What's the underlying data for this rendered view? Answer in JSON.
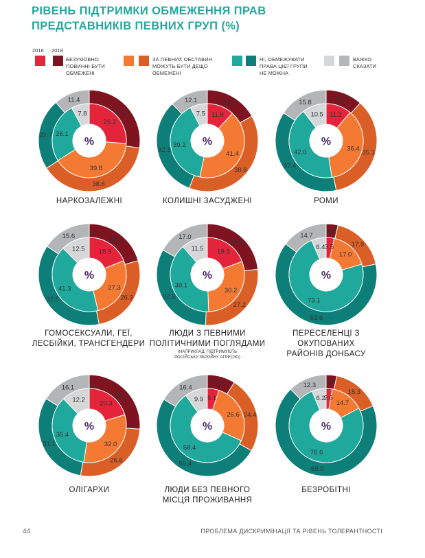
{
  "title": "РІВЕНЬ ПІДТРИМКИ ОБМЕЖЕННЯ ПРАВ ПРЕДСТАВНИКІВ ПЕВНИХ ГРУП (%)",
  "years": [
    "2016",
    "2018"
  ],
  "legend": [
    {
      "label": "БЕЗУМОВНО ПОВИННІ БУТИ ОБМЕЖЕНІ",
      "c2016": "#e3243b",
      "c2018": "#7d1420"
    },
    {
      "label": "ЗА ПЕВНИХ ОБСТАВИН МОЖУТЬ БУТИ ДЕЩО ОБМЕЖЕНІ",
      "c2016": "#f47a33",
      "c2018": "#d95f26"
    },
    {
      "label": "НІ, ОБМЕЖУВАТИ ПРАВА ЦІЄЇ ГРУПИ НЕ МОЖНА",
      "c2016": "#1fa89c",
      "c2018": "#0d7f78"
    },
    {
      "label": "ВАЖКО СКАЗАТИ",
      "c2016": "#d6d7d8",
      "c2018": "#b4b5b7"
    }
  ],
  "center_label": "%",
  "chart_data": [
    {
      "type": "pie",
      "name": "НАРКОЗАЛЕЖНІ",
      "note": "",
      "inner_2016": [
        26.2,
        39.8,
        26.1,
        7.8
      ],
      "outer_2018": [
        27.3,
        38.6,
        22.7,
        11.4
      ]
    },
    {
      "type": "pie",
      "name": "КОЛИШНІ ЗАСУДЖЕНІ",
      "note": "",
      "inner_2016": [
        11.8,
        41.4,
        39.2,
        7.5
      ],
      "outer_2018": [
        17.0,
        38.8,
        32.1,
        12.1
      ]
    },
    {
      "type": "pie",
      "name": "РОМИ",
      "note": "",
      "inner_2016": [
        11.2,
        36.4,
        42.0,
        10.5
      ],
      "outer_2018": [
        11.7,
        35.1,
        37.4,
        15.8
      ]
    },
    {
      "type": "pie",
      "name": "ГОМОСЕКСУАЛИ, ГЕЇ, ЛЕСБІЙКИ, ТРАНСГЕНДЕРИ",
      "note": "",
      "inner_2016": [
        18.9,
        27.3,
        41.3,
        12.5
      ],
      "outer_2018": [
        20.6,
        26.3,
        37.5,
        15.6
      ]
    },
    {
      "type": "pie",
      "name": "ЛЮДИ З ПЕВНИМИ ПОЛІТИЧНИМИ ПОГЛЯДАМИ",
      "note": "(НАПРИКЛАД, ПІДТРИМУЮТЬ РОСІЙСЬКУ ЗБРОЙНУ АГРЕСІЮ)",
      "inner_2016": [
        19.3,
        30.2,
        39.1,
        11.5
      ],
      "outer_2018": [
        23.4,
        27.2,
        32.5,
        17.0
      ]
    },
    {
      "type": "pie",
      "name": "ПЕРЕСЕЛЕНЦІ З ОКУПОВАНИХ РАЙОНІВ ДОНБАСУ",
      "note": "",
      "inner_2016": [
        3.5,
        17.0,
        73.1,
        6.4
      ],
      "outer_2018": [
        3.8,
        17.9,
        63.6,
        14.7
      ]
    },
    {
      "type": "pie",
      "name": "ОЛІГАРХИ",
      "note": "",
      "inner_2016": [
        20.3,
        32.0,
        35.4,
        12.2
      ],
      "outer_2018": [
        26.1,
        26.6,
        31.1,
        16.1
      ]
    },
    {
      "type": "pie",
      "name": "ЛЮДИ БЕЗ ПЕВНОГО МІСЦЯ ПРОЖИВАННЯ",
      "note": "",
      "inner_2016": [
        5.1,
        26.6,
        58.4,
        9.9
      ],
      "outer_2018": [
        8.9,
        24.4,
        50.4,
        16.4
      ]
    },
    {
      "type": "pie",
      "name": "БЕЗРОБІТНІ",
      "note": "",
      "inner_2016": [
        2.6,
        14.7,
        76.6,
        6.2
      ],
      "outer_2018": [
        3.4,
        15.3,
        69.0,
        12.3
      ]
    }
  ],
  "footer": {
    "page": "44",
    "text": "ПРОБЛЕМА ДИСКРИМІНАЦІЇ ТА РІВЕНЬ ТОЛЕРАНТНОСТІ"
  }
}
